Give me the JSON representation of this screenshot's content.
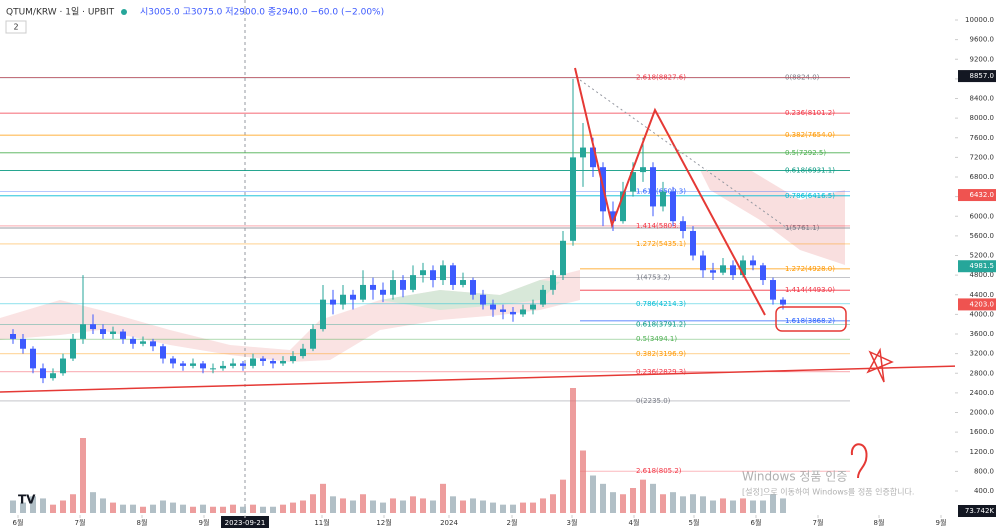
{
  "header": {
    "symbol": "QTUM/KRW · 1일 · UPBIT",
    "ohlc": "시3005.0 고3075.0 저2900.0 종2940.0 −60.0 (−2.00%)",
    "indicator_count": "2"
  },
  "watermark": {
    "title": "Windows 정품 인증",
    "text": "[설정]으로 이동하여 Windows를 정품 인증합니다."
  },
  "chart_data": {
    "type": "candlestick",
    "up_color": "#26a69a",
    "down_color": "#3d5afe",
    "volume_up_color": "#e57373",
    "volume_down_color": "#90a4ae",
    "xlim": [
      0,
      95
    ],
    "xticks": [
      {
        "value": 1,
        "label": "6월"
      },
      {
        "value": 7.2,
        "label": "7월"
      },
      {
        "value": 13.4,
        "label": "8월"
      },
      {
        "value": 19.6,
        "label": "9월"
      },
      {
        "value": 23.7,
        "label": "2023-09-21"
      },
      {
        "value": 31.4,
        "label": "11월"
      },
      {
        "value": 37.6,
        "label": "12월"
      },
      {
        "value": 44.1,
        "label": "2024"
      },
      {
        "value": 50.4,
        "label": "2월"
      },
      {
        "value": 56.4,
        "label": "3월"
      },
      {
        "value": 62.6,
        "label": "4월"
      },
      {
        "value": 68.6,
        "label": "5월"
      },
      {
        "value": 74.8,
        "label": "6월"
      },
      {
        "value": 81,
        "label": "7월"
      },
      {
        "value": 87.1,
        "label": "8월"
      },
      {
        "value": 93.3,
        "label": "9월"
      }
    ],
    "ylim": [
      400,
      10000
    ],
    "yticks": [
      {
        "value": 10000,
        "label": "10000.0"
      },
      {
        "value": 9600,
        "label": "9600.0"
      },
      {
        "value": 9200,
        "label": "9200.0"
      },
      {
        "value": 8800,
        "label": "8800.0"
      },
      {
        "value": 8400,
        "label": "8400.0"
      },
      {
        "value": 8000,
        "label": "8000.0"
      },
      {
        "value": 7600,
        "label": "7600.0"
      },
      {
        "value": 7200,
        "label": "7200.0"
      },
      {
        "value": 6800,
        "label": "6800.0"
      },
      {
        "value": 6400,
        "label": "6400.0"
      },
      {
        "value": 6000,
        "label": "6000.0"
      },
      {
        "value": 5600,
        "label": "5600.0"
      },
      {
        "value": 5200,
        "label": "5200.0"
      },
      {
        "value": 4800,
        "label": "4800.0"
      },
      {
        "value": 4400,
        "label": "4400.0"
      },
      {
        "value": 4000,
        "label": "4000.0"
      },
      {
        "value": 3600,
        "label": "3600.0"
      },
      {
        "value": 3200,
        "label": "3200.0"
      },
      {
        "value": 2800,
        "label": "2800.0"
      },
      {
        "value": 2400,
        "label": "2400.0"
      },
      {
        "value": 2000,
        "label": "2000.0"
      },
      {
        "value": 1600,
        "label": "1600.0"
      },
      {
        "value": 1200,
        "label": "1200.0"
      },
      {
        "value": 800,
        "label": "800.0"
      },
      {
        "value": 400,
        "label": "400.0"
      }
    ],
    "price_badges": [
      {
        "value": 8857,
        "label": "8857.0",
        "color": "#131722"
      },
      {
        "value": 6432,
        "label": "6432.0",
        "color": "#ef5350"
      },
      {
        "value": 4981.5,
        "label": "4981.5",
        "color": "#26a69a"
      },
      {
        "value": 4203,
        "label": "4203.0",
        "color": "#ef5350"
      }
    ],
    "volume_badge": "73.742K",
    "fib_right": [
      {
        "value": 8824.0,
        "label": "0(8824.0)",
        "color": "#787b86"
      },
      {
        "value": 8101.2,
        "label": "0.236(8101.2)",
        "color": "#f23645"
      },
      {
        "value": 7654.0,
        "label": "0.382(7654.0)",
        "color": "#ff9800"
      },
      {
        "value": 7292.5,
        "label": "0.5(7292.5)",
        "color": "#4caf50"
      },
      {
        "value": 6931.1,
        "label": "0.618(6931.1)",
        "color": "#089981"
      },
      {
        "value": 6416.5,
        "label": "0.786(6416.5)",
        "color": "#00bcd4"
      },
      {
        "value": 5761.1,
        "label": "1(5761.1)",
        "color": "#787b86"
      },
      {
        "value": 4928.0,
        "label": "1.272(4928.0)",
        "color": "#ff9800"
      },
      {
        "value": 4493.0,
        "label": "1.414(4493.0)",
        "color": "#f23645"
      },
      {
        "value": 3868.2,
        "label": "1.618(3868.2)",
        "color": "#2962ff"
      }
    ],
    "fib_left": [
      {
        "value": 8827.6,
        "label": "2.618(8827.6)",
        "color": "#f23645"
      },
      {
        "value": 6509.3,
        "label": "1.618(6509.3)",
        "color": "#2962ff"
      },
      {
        "value": 5803.1,
        "label": "1.414(5803.1)",
        "color": "#f23645"
      },
      {
        "value": 5435.1,
        "label": "1.272(5435.1)",
        "color": "#ff9800"
      },
      {
        "value": 4753.2,
        "label": "1(4753.2)",
        "color": "#787b86"
      },
      {
        "value": 4214.3,
        "label": "0.786(4214.3)",
        "color": "#00bcd4"
      },
      {
        "value": 3791.2,
        "label": "0.618(3791.2)",
        "color": "#089981"
      },
      {
        "value": 3494.1,
        "label": "0.5(3494.1)",
        "color": "#4caf50"
      },
      {
        "value": 3196.9,
        "label": "0.382(3196.9)",
        "color": "#ff9800"
      },
      {
        "value": 2829.3,
        "label": "0.236(2829.3)",
        "color": "#f23645"
      },
      {
        "value": 2235.0,
        "label": "0(2235.0)",
        "color": "#787b86"
      },
      {
        "value": 805.2,
        "label": "2.618(805.2)",
        "color": "#f23645"
      }
    ],
    "candles": [
      [
        3600,
        3700,
        3400,
        3500
      ],
      [
        3500,
        3600,
        3200,
        3300
      ],
      [
        3300,
        3350,
        2800,
        2900
      ],
      [
        2900,
        3000,
        2600,
        2700
      ],
      [
        2700,
        2900,
        2650,
        2800
      ],
      [
        2800,
        3200,
        2750,
        3100
      ],
      [
        3100,
        3600,
        3050,
        3500
      ],
      [
        3500,
        4800,
        3400,
        3800
      ],
      [
        3800,
        4000,
        3600,
        3700
      ],
      [
        3700,
        3800,
        3500,
        3600
      ],
      [
        3600,
        3750,
        3500,
        3650
      ],
      [
        3650,
        3700,
        3400,
        3500
      ],
      [
        3500,
        3550,
        3300,
        3400
      ],
      [
        3400,
        3550,
        3350,
        3450
      ],
      [
        3450,
        3500,
        3250,
        3350
      ],
      [
        3350,
        3400,
        3000,
        3100
      ],
      [
        3100,
        3150,
        2900,
        3000
      ],
      [
        3000,
        3050,
        2850,
        2950
      ],
      [
        2950,
        3100,
        2900,
        3000
      ],
      [
        3000,
        3050,
        2800,
        2900
      ],
      [
        2900,
        3000,
        2800,
        2900
      ],
      [
        2900,
        3050,
        2850,
        2950
      ],
      [
        2950,
        3100,
        2900,
        3000
      ],
      [
        3000,
        3050,
        2850,
        2950
      ],
      [
        2950,
        3200,
        2900,
        3100
      ],
      [
        3100,
        3150,
        2950,
        3050
      ],
      [
        3050,
        3100,
        2900,
        3000
      ],
      [
        3000,
        3150,
        2950,
        3050
      ],
      [
        3050,
        3250,
        3000,
        3150
      ],
      [
        3150,
        3400,
        3100,
        3300
      ],
      [
        3300,
        3800,
        3250,
        3700
      ],
      [
        3700,
        4600,
        3650,
        4300
      ],
      [
        4300,
        4500,
        4000,
        4200
      ],
      [
        4200,
        4600,
        4100,
        4400
      ],
      [
        4400,
        4500,
        4100,
        4300
      ],
      [
        4300,
        4900,
        4250,
        4600
      ],
      [
        4600,
        4750,
        4300,
        4500
      ],
      [
        4500,
        4650,
        4250,
        4400
      ],
      [
        4400,
        4900,
        4300,
        4700
      ],
      [
        4700,
        4800,
        4350,
        4500
      ],
      [
        4500,
        5000,
        4450,
        4800
      ],
      [
        4800,
        5050,
        4650,
        4900
      ],
      [
        4900,
        5000,
        4550,
        4700
      ],
      [
        4700,
        5100,
        4600,
        5000
      ],
      [
        5000,
        5050,
        4500,
        4600
      ],
      [
        4600,
        4850,
        4550,
        4700
      ],
      [
        4700,
        4750,
        4300,
        4400
      ],
      [
        4400,
        4500,
        4100,
        4200
      ],
      [
        4200,
        4300,
        3950,
        4100
      ],
      [
        4100,
        4200,
        3900,
        4050
      ],
      [
        4050,
        4150,
        3850,
        4000
      ],
      [
        4000,
        4200,
        3950,
        4100
      ],
      [
        4100,
        4300,
        4000,
        4200
      ],
      [
        4200,
        4600,
        4150,
        4500
      ],
      [
        4500,
        4900,
        4400,
        4800
      ],
      [
        4800,
        5700,
        4700,
        5500
      ],
      [
        5500,
        8800,
        5400,
        7200
      ],
      [
        7200,
        7900,
        6600,
        7400
      ],
      [
        7400,
        7600,
        6800,
        7000
      ],
      [
        7000,
        7100,
        5800,
        6100
      ],
      [
        6100,
        6300,
        5700,
        5900
      ],
      [
        5900,
        6700,
        5850,
        6500
      ],
      [
        6500,
        7100,
        6400,
        6900
      ],
      [
        6900,
        7600,
        6700,
        7000
      ],
      [
        7000,
        7100,
        6000,
        6200
      ],
      [
        6200,
        6700,
        6100,
        6500
      ],
      [
        6500,
        6600,
        5800,
        5900
      ],
      [
        5900,
        6000,
        5550,
        5700
      ],
      [
        5700,
        5800,
        5100,
        5200
      ],
      [
        5200,
        5300,
        4750,
        4900
      ],
      [
        4900,
        5050,
        4700,
        4850
      ],
      [
        4850,
        5150,
        4800,
        5000
      ],
      [
        5000,
        5100,
        4700,
        4800
      ],
      [
        4800,
        5200,
        4750,
        5100
      ],
      [
        5100,
        5200,
        4900,
        5000
      ],
      [
        5000,
        5050,
        4600,
        4700
      ],
      [
        4700,
        4750,
        4200,
        4300
      ],
      [
        4300,
        4350,
        4100,
        4200
      ]
    ],
    "volume": [
      30,
      25,
      40,
      35,
      20,
      30,
      45,
      180,
      50,
      35,
      25,
      20,
      20,
      15,
      20,
      30,
      25,
      20,
      15,
      20,
      15,
      15,
      20,
      15,
      20,
      15,
      15,
      20,
      25,
      30,
      45,
      70,
      40,
      35,
      30,
      45,
      30,
      25,
      35,
      30,
      40,
      35,
      30,
      70,
      40,
      30,
      35,
      30,
      25,
      20,
      20,
      25,
      25,
      35,
      45,
      80,
      300,
      150,
      90,
      70,
      50,
      45,
      60,
      80,
      70,
      45,
      50,
      40,
      45,
      40,
      30,
      35,
      30,
      35,
      30,
      30,
      45,
      35
    ]
  }
}
